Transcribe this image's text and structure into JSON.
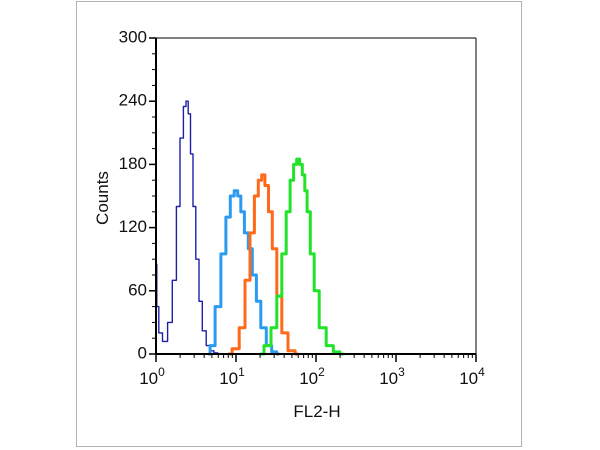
{
  "chart_data": {
    "type": "line",
    "xlabel": "FL2-H",
    "ylabel": "Counts",
    "x_scale": "log",
    "xlim": [
      1,
      10000
    ],
    "ylim": [
      0,
      300
    ],
    "x_ticks": [
      {
        "base": "10",
        "exp": "0",
        "value": 1
      },
      {
        "base": "10",
        "exp": "1",
        "value": 10
      },
      {
        "base": "10",
        "exp": "2",
        "value": 100
      },
      {
        "base": "10",
        "exp": "3",
        "value": 1000
      },
      {
        "base": "10",
        "exp": "4",
        "value": 10000
      }
    ],
    "y_ticks": [
      "0",
      "60",
      "120",
      "180",
      "240",
      "300"
    ],
    "series": [
      {
        "color": "#1f1fa8",
        "style": "thin",
        "x": [
          1.0,
          1.05,
          1.12,
          1.3,
          1.5,
          1.7,
          1.9,
          2.1,
          2.3,
          2.45,
          2.6,
          2.8,
          3.0,
          3.3,
          3.6,
          4.0,
          4.5,
          5.0,
          5.6,
          6.3,
          7.0
        ],
        "y": [
          85,
          45,
          20,
          12,
          30,
          70,
          140,
          205,
          235,
          240,
          228,
          190,
          140,
          90,
          50,
          22,
          8,
          3,
          1,
          0,
          0
        ]
      },
      {
        "color": "#2b9bf0",
        "style": "thick",
        "x": [
          4.5,
          5.0,
          6.0,
          7.0,
          8.0,
          9.0,
          10.0,
          11.0,
          12.0,
          13.5,
          15.0,
          17.0,
          19.0,
          22.0,
          26.0,
          30.0,
          35.0
        ],
        "y": [
          0,
          8,
          45,
          95,
          130,
          150,
          155,
          150,
          135,
          115,
          100,
          75,
          50,
          25,
          8,
          2,
          0
        ]
      },
      {
        "color": "#ff6a1a",
        "style": "thick",
        "x": [
          8.0,
          10.0,
          12.0,
          14.0,
          16.0,
          18.0,
          20.0,
          22.0,
          24.0,
          27.0,
          30.0,
          35.0,
          40.0,
          50.0,
          60.0
        ],
        "y": [
          0,
          5,
          25,
          70,
          115,
          150,
          165,
          170,
          160,
          135,
          100,
          55,
          20,
          3,
          0
        ]
      },
      {
        "color": "#22e22a",
        "style": "thick",
        "x": [
          20.0,
          25.0,
          30.0,
          35.0,
          40.0,
          45.0,
          50.0,
          55.0,
          60.0,
          65.0,
          70.0,
          75.0,
          80.0,
          90.0,
          100.0,
          120.0,
          150.0,
          180.0,
          220.0
        ],
        "y": [
          0,
          8,
          25,
          55,
          95,
          135,
          165,
          180,
          185,
          180,
          170,
          155,
          135,
          95,
          60,
          25,
          8,
          2,
          0
        ]
      }
    ]
  }
}
